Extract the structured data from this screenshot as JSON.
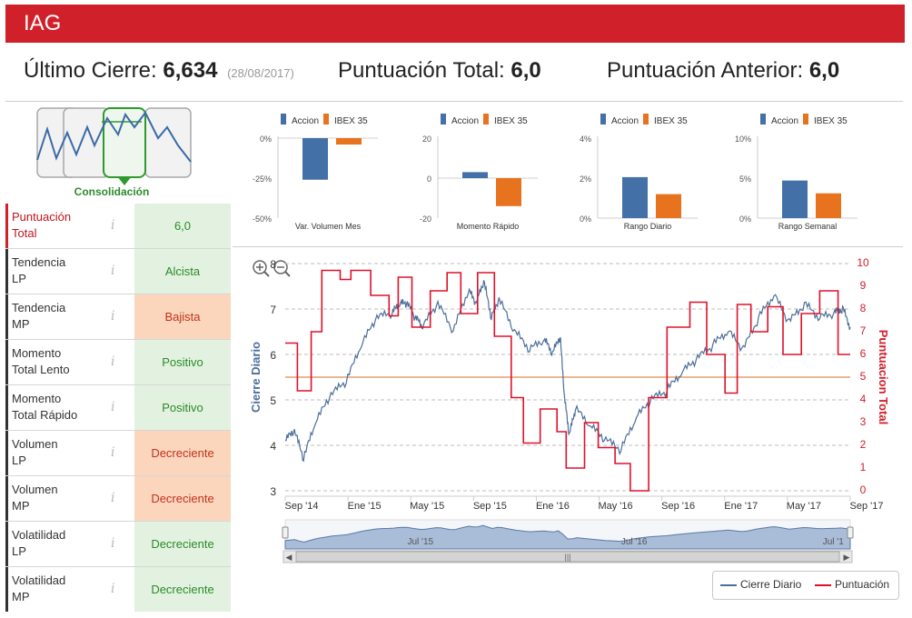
{
  "header": {
    "title": "IAG"
  },
  "stats": {
    "last_close_label": "Último Cierre:",
    "last_close_value": "6,634",
    "last_close_date": "(28/08/2017)",
    "total_score_label": "Puntuación Total:",
    "total_score_value": "6,0",
    "previous_score_label": "Puntuación Anterior:",
    "previous_score_value": "6,0"
  },
  "phase": {
    "label": "Consolidación",
    "icon": "phase-cycle-icon"
  },
  "indicators": [
    {
      "name_1": "Puntuación",
      "name_2": "Total",
      "value": "6,0",
      "tone": "green",
      "highlight": true
    },
    {
      "name_1": "Tendencia",
      "name_2": "LP",
      "value": "Alcista",
      "tone": "green"
    },
    {
      "name_1": "Tendencia",
      "name_2": "MP",
      "value": "Bajista",
      "tone": "orange"
    },
    {
      "name_1": "Momento",
      "name_2": "Total Lento",
      "value": "Positivo",
      "tone": "green"
    },
    {
      "name_1": "Momento",
      "name_2": "Total Rápido",
      "value": "Positivo",
      "tone": "green"
    },
    {
      "name_1": "Volumen",
      "name_2": "LP",
      "value": "Decreciente",
      "tone": "orange"
    },
    {
      "name_1": "Volumen",
      "name_2": "MP",
      "value": "Decreciente",
      "tone": "orange"
    },
    {
      "name_1": "Volatilidad",
      "name_2": "LP",
      "value": "Decreciente",
      "tone": "green"
    },
    {
      "name_1": "Volatilidad",
      "name_2": "MP",
      "value": "Decreciente",
      "tone": "green"
    }
  ],
  "colors": {
    "brand": "#d0202a",
    "accion": "#4470a8",
    "ibex": "#e8731e",
    "price_line": "#4c6f99",
    "score_line": "#e0102a",
    "mid_line": "#e0a070"
  },
  "chart_data": [
    {
      "type": "bar",
      "title": "Var. Volumen Mes",
      "categories": [
        "Accion",
        "IBEX 35"
      ],
      "values": [
        -26,
        -4
      ],
      "yticks": [
        "0%",
        "-25%",
        "-50%"
      ],
      "ylim": [
        -50,
        0
      ]
    },
    {
      "type": "bar",
      "title": "Momento Rápido",
      "categories": [
        "Accion",
        "IBEX 35"
      ],
      "values": [
        3,
        -14
      ],
      "yticks": [
        "20",
        "0",
        "-20"
      ],
      "ylim": [
        -20,
        20
      ]
    },
    {
      "type": "bar",
      "title": "Rango Diario",
      "categories": [
        "Accion",
        "IBEX 35"
      ],
      "values": [
        2.05,
        1.2
      ],
      "yticks": [
        "4%",
        "2%",
        "0%"
      ],
      "ylim": [
        0,
        4
      ]
    },
    {
      "type": "bar",
      "title": "Rango Semanal",
      "categories": [
        "Accion",
        "IBEX 35"
      ],
      "values": [
        4.7,
        3.1
      ],
      "yticks": [
        "10%",
        "5%",
        "0%"
      ],
      "ylim": [
        0,
        10
      ]
    },
    {
      "type": "line",
      "title": "",
      "ylabel_left": "Cierre Diario",
      "ylabel_right": "Puntuacion Total",
      "xticks": [
        "Sep '14",
        "Ene '15",
        "May '15",
        "Sep '15",
        "Ene '16",
        "May '16",
        "Sep '16",
        "Ene '17",
        "May '17",
        "Sep '17"
      ],
      "yticks_left": [
        "8",
        "7",
        "6",
        "5",
        "4",
        "3"
      ],
      "yticks_right": [
        "10",
        "9",
        "8",
        "7",
        "6",
        "5",
        "4",
        "3",
        "2",
        "1",
        "0"
      ],
      "ylim_left": [
        3,
        8
      ],
      "ylim_right": [
        0,
        10
      ],
      "reference_line_score": 5,
      "series": [
        {
          "name": "Cierre Diario",
          "t": [
            0,
            0.6,
            1.2,
            2,
            3,
            4,
            5,
            6,
            7,
            7.5,
            8,
            8.5,
            9,
            10,
            11,
            12,
            12.5,
            13,
            13.5,
            14,
            15,
            16,
            17,
            17.5,
            18,
            18.3,
            18.6,
            19,
            20,
            21,
            22,
            23,
            24,
            25,
            26,
            27,
            28,
            29,
            30,
            31,
            32,
            33,
            34,
            35,
            36,
            36.5,
            37
          ],
          "values": [
            4.1,
            4.3,
            3.7,
            4.5,
            5.1,
            5.4,
            6.2,
            6.8,
            6.9,
            7.1,
            7.1,
            6.8,
            6.6,
            7.1,
            6.5,
            7.4,
            7.1,
            7.6,
            6.8,
            7.2,
            6.5,
            6.1,
            6.3,
            6.0,
            6.4,
            5.0,
            4.2,
            4.8,
            4.4,
            4.1,
            3.9,
            4.6,
            5.0,
            5.2,
            5.6,
            5.9,
            6.2,
            6.5,
            6.1,
            6.8,
            7.3,
            6.7,
            7.1,
            6.8,
            6.9,
            7.0,
            6.6
          ]
        },
        {
          "name": "Puntuación",
          "t": [
            0,
            0.8,
            0.8,
            1.7,
            1.7,
            2.4,
            2.4,
            3.6,
            3.6,
            4.3,
            4.3,
            5.6,
            5.6,
            6.8,
            6.8,
            7.4,
            7.4,
            8.3,
            8.3,
            9.5,
            9.5,
            10.6,
            10.6,
            11.5,
            11.5,
            12.6,
            12.6,
            13.7,
            13.7,
            14.8,
            14.8,
            15.6,
            15.6,
            16.7,
            16.7,
            17.8,
            17.8,
            18.4,
            18.4,
            19.6,
            19.6,
            20.5,
            20.5,
            21.6,
            21.6,
            22.6,
            22.6,
            23.8,
            23.8,
            25.0,
            25.0,
            26.5,
            26.5,
            27.6,
            27.6,
            28.8,
            28.8,
            29.6,
            29.6,
            30.5,
            30.5,
            31.6,
            31.6,
            32.6,
            32.6,
            33.8,
            33.8,
            35.0,
            35.0,
            36.2,
            36.2,
            37
          ],
          "values": [
            6.5,
            6.5,
            4.4,
            4.4,
            7.0,
            7.0,
            9.7,
            9.7,
            9.3,
            9.3,
            9.7,
            9.7,
            8.6,
            8.6,
            7.7,
            7.7,
            9.4,
            9.4,
            7.2,
            7.2,
            8.8,
            8.8,
            9.6,
            9.6,
            7.8,
            7.8,
            9.6,
            9.6,
            6.8,
            6.8,
            4.1,
            4.1,
            2.1,
            2.1,
            3.6,
            3.6,
            2.6,
            2.6,
            1.0,
            1.0,
            3.0,
            3.0,
            1.9,
            1.9,
            1.2,
            1.2,
            0.0,
            0.0,
            4.1,
            4.1,
            7.2,
            7.2,
            8.3,
            8.3,
            6.0,
            6.0,
            4.3,
            4.3,
            8.2,
            8.2,
            7.0,
            7.0,
            8.1,
            8.1,
            6.0,
            6.0,
            7.8,
            7.8,
            8.8,
            8.8,
            6.0,
            6.0
          ]
        }
      ],
      "navigator_labels": [
        "Jul '15",
        "Jul '16",
        "Jul '1"
      ],
      "legend": [
        "Cierre Diario",
        "Puntuación"
      ]
    }
  ]
}
